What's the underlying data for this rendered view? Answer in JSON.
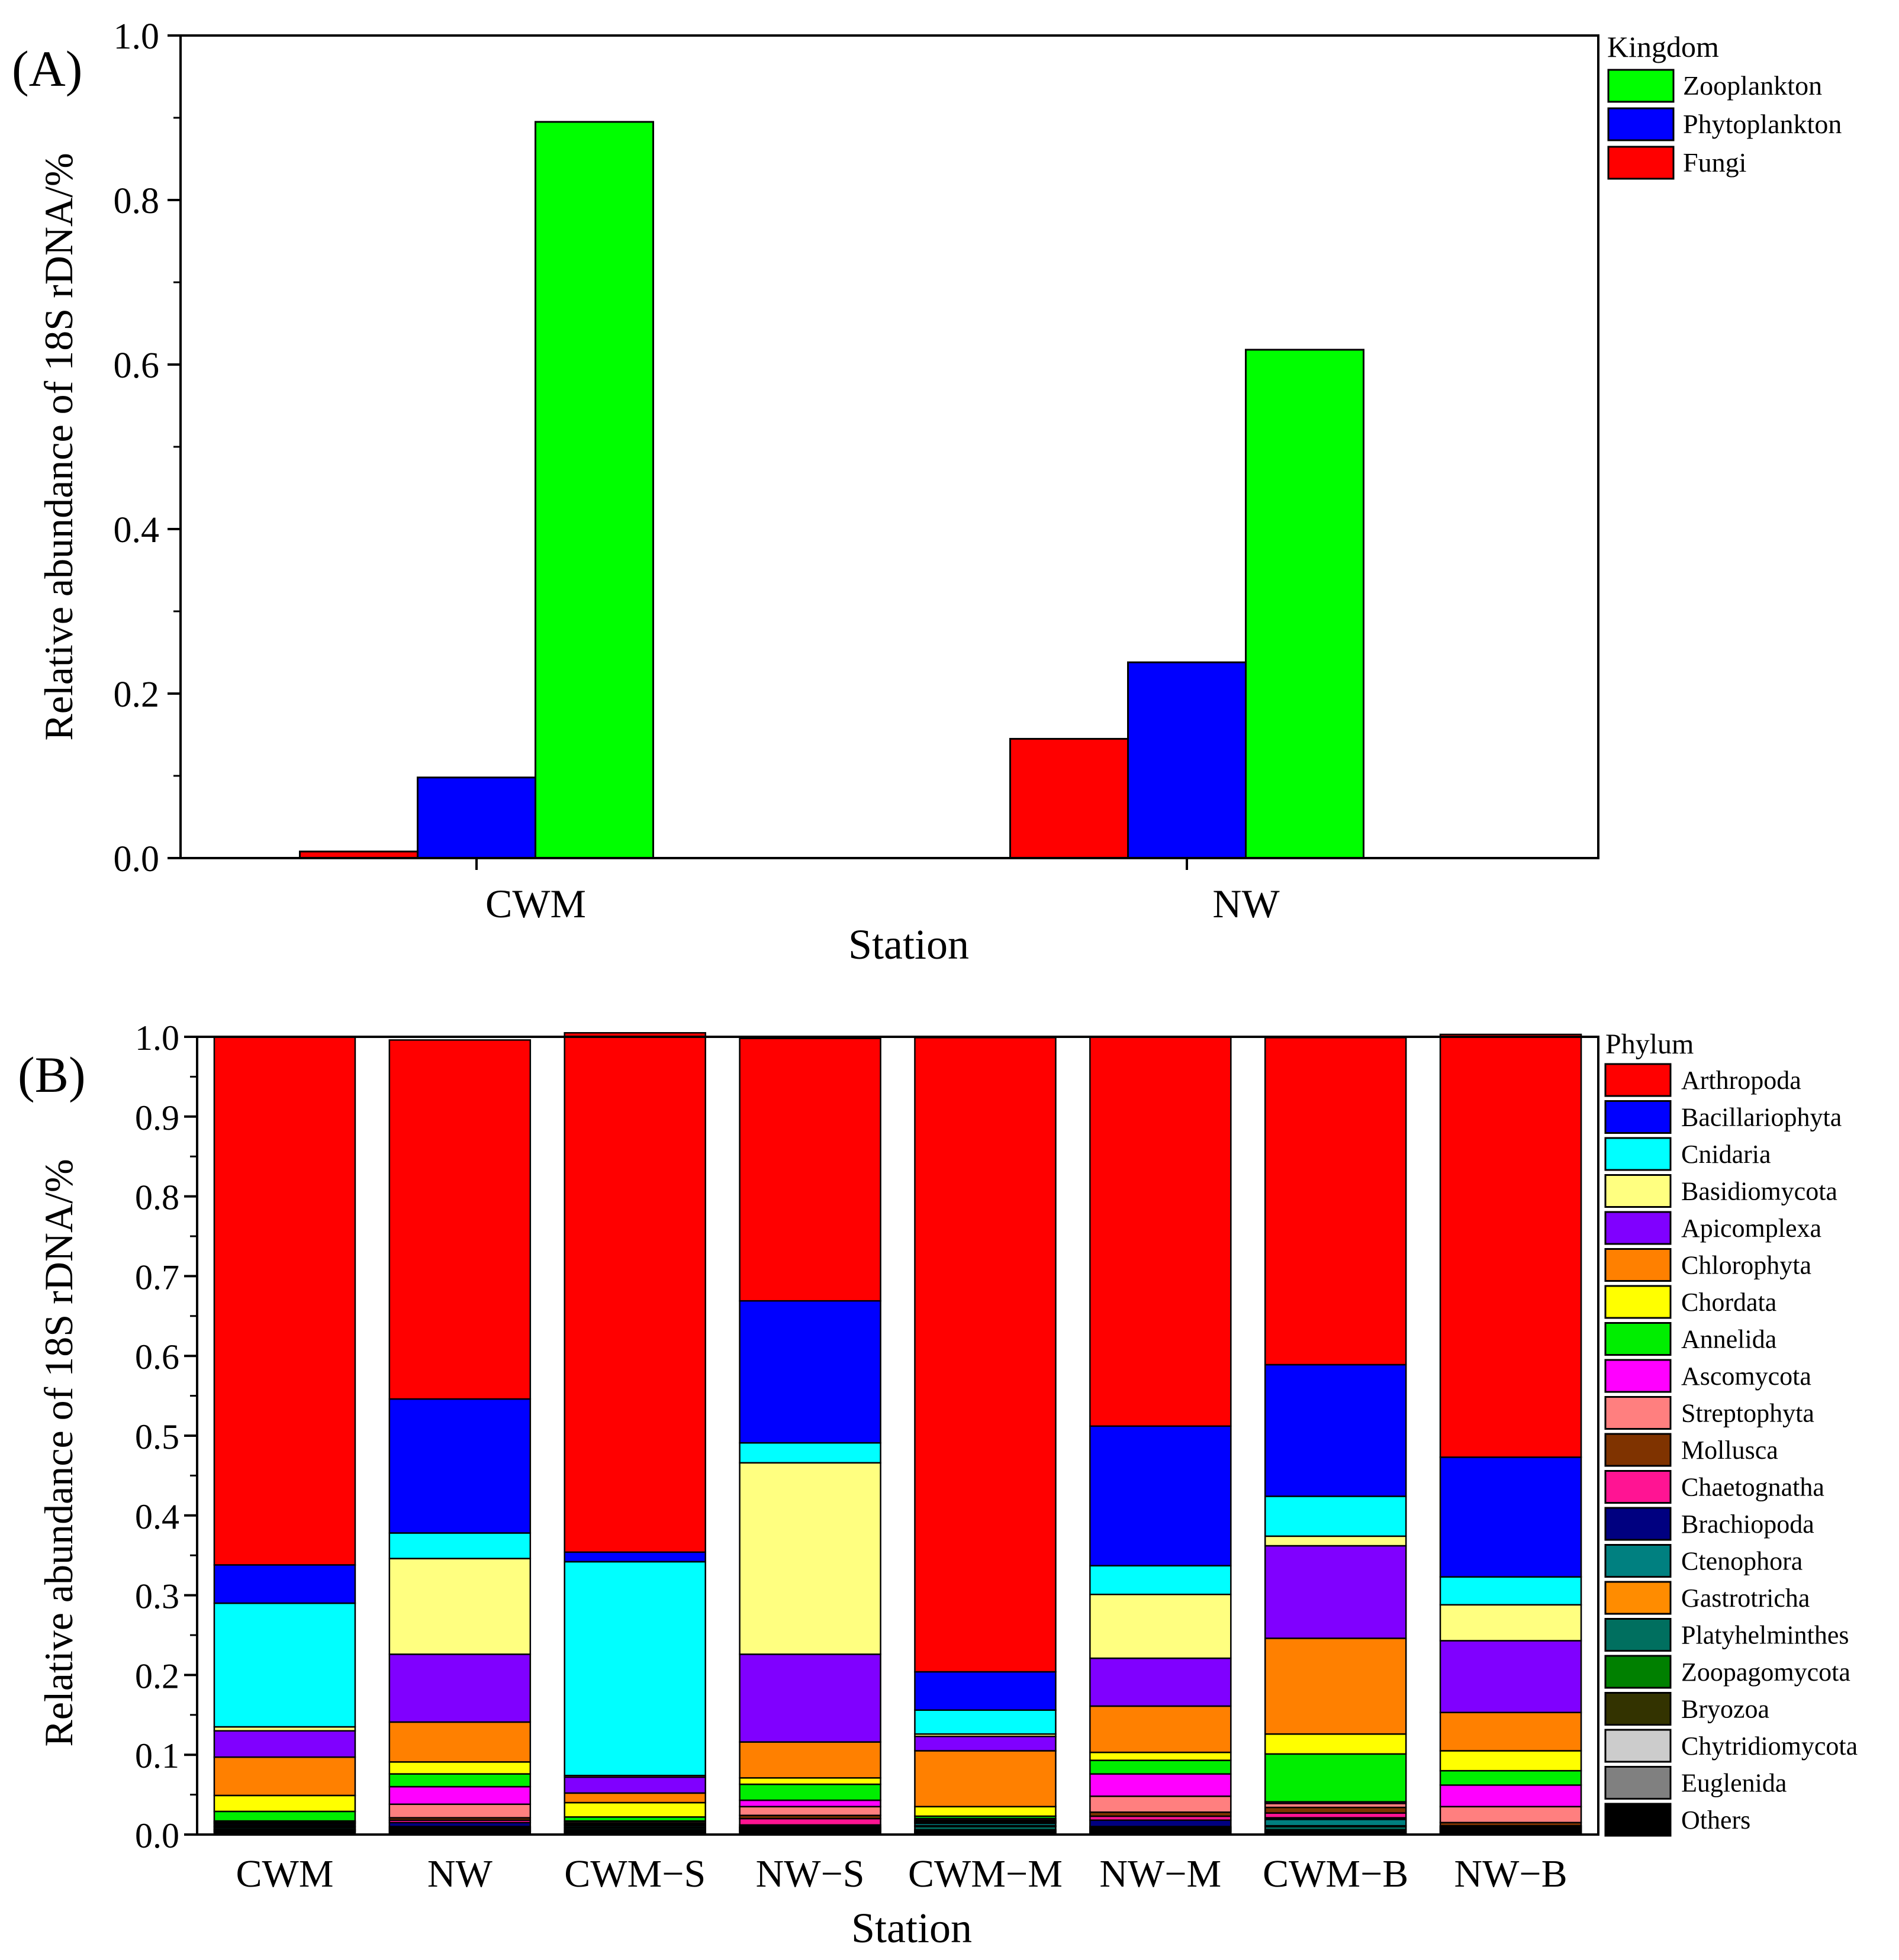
{
  "chart_data": [
    {
      "type": "bar",
      "panel_label": "(A)",
      "xlabel": "Station",
      "ylabel": "Relative abundance of 18S rDNA/%",
      "ylim": [
        0,
        1.0
      ],
      "yticks": [
        "0.0",
        "0.2",
        "0.4",
        "0.6",
        "0.8",
        "1.0"
      ],
      "categories": [
        "CWM",
        "NW"
      ],
      "legend_title": "Kingdom",
      "legend_placement": "right",
      "series": [
        {
          "name": "Fungi",
          "color": "#ff0000",
          "values": [
            0.008,
            0.145
          ]
        },
        {
          "name": "Phytoplankton",
          "color": "#0000ff",
          "values": [
            0.098,
            0.238
          ]
        },
        {
          "name": "Zooplankton",
          "color": "#00ff00",
          "values": [
            0.895,
            0.618
          ]
        }
      ],
      "legend_order": [
        "Zooplankton",
        "Phytoplankton",
        "Fungi"
      ]
    },
    {
      "type": "bar",
      "stacked": true,
      "panel_label": "(B)",
      "xlabel": "Station",
      "ylabel": "Relative abundance of 18S rDNA/%",
      "ylim": [
        0,
        1.0
      ],
      "yticks": [
        "0.0",
        "0.1",
        "0.2",
        "0.3",
        "0.4",
        "0.5",
        "0.6",
        "0.7",
        "0.8",
        "0.9",
        "1.0"
      ],
      "categories": [
        "CWM",
        "NW",
        "CWM−S",
        "NW−S",
        "CWM−M",
        "NW−M",
        "CWM−B",
        "NW−B"
      ],
      "legend_title": "Phylum",
      "legend_placement": "right",
      "series": [
        {
          "name": "Others",
          "color": "#000000",
          "values": [
            0.003,
            0.003,
            0.002,
            0.003,
            0.002,
            0.003,
            0.002,
            0.002
          ]
        },
        {
          "name": "Euglenida",
          "color": "#808080",
          "values": [
            0.001,
            0.001,
            0.001,
            0.001,
            0.001,
            0.001,
            0.001,
            0.001
          ]
        },
        {
          "name": "Chytridiomycota",
          "color": "#cccccc",
          "values": [
            0.001,
            0.001,
            0.001,
            0.001,
            0.001,
            0.001,
            0.001,
            0.001
          ]
        },
        {
          "name": "Bryozoa",
          "color": "#333300",
          "values": [
            0.001,
            0.001,
            0.001,
            0.001,
            0.001,
            0.001,
            0.001,
            0.001
          ]
        },
        {
          "name": "Zoopagomycota",
          "color": "#008000",
          "values": [
            0.001,
            0.001,
            0.001,
            0.001,
            0.001,
            0.001,
            0.001,
            0.001
          ]
        },
        {
          "name": "Platyhelminthes",
          "color": "#006f5f",
          "values": [
            0.002,
            0.001,
            0.002,
            0.001,
            0.004,
            0.001,
            0.004,
            0.001
          ]
        },
        {
          "name": "Gastrotricha",
          "color": "#ff8c00",
          "values": [
            0.001,
            0.001,
            0.001,
            0.001,
            0.001,
            0.001,
            0.001,
            0.001
          ]
        },
        {
          "name": "Ctenophora",
          "color": "#008080",
          "values": [
            0.001,
            0.001,
            0.002,
            0.001,
            0.003,
            0.001,
            0.008,
            0.001
          ]
        },
        {
          "name": "Brachiopoda",
          "color": "#000080",
          "values": [
            0.002,
            0.005,
            0.001,
            0.002,
            0.001,
            0.008,
            0.002,
            0.001
          ]
        },
        {
          "name": "Chaetognatha",
          "color": "#ff1493",
          "values": [
            0.001,
            0.003,
            0.001,
            0.008,
            0.001,
            0.005,
            0.006,
            0.001
          ]
        },
        {
          "name": "Mollusca",
          "color": "#7f3300",
          "values": [
            0.001,
            0.003,
            0.001,
            0.004,
            0.001,
            0.005,
            0.007,
            0.004
          ]
        },
        {
          "name": "Streptophyta",
          "color": "#ff7f7f",
          "values": [
            0.001,
            0.017,
            0.002,
            0.011,
            0.001,
            0.02,
            0.005,
            0.02
          ]
        },
        {
          "name": "Ascomycota",
          "color": "#ff00ff",
          "values": [
            0.001,
            0.022,
            0.001,
            0.008,
            0.002,
            0.028,
            0.002,
            0.027
          ]
        },
        {
          "name": "Annelida",
          "color": "#00ee00",
          "values": [
            0.012,
            0.016,
            0.005,
            0.02,
            0.003,
            0.017,
            0.06,
            0.018
          ]
        },
        {
          "name": "Chordata",
          "color": "#ffff00",
          "values": [
            0.02,
            0.015,
            0.018,
            0.008,
            0.012,
            0.01,
            0.025,
            0.025
          ]
        },
        {
          "name": "Chlorophyta",
          "color": "#ff8000",
          "values": [
            0.048,
            0.05,
            0.012,
            0.045,
            0.07,
            0.058,
            0.12,
            0.048
          ]
        },
        {
          "name": "Apicomplexa",
          "color": "#8000ff",
          "values": [
            0.033,
            0.085,
            0.02,
            0.11,
            0.018,
            0.06,
            0.116,
            0.09
          ]
        },
        {
          "name": "Basidiomycota",
          "color": "#ffff80",
          "values": [
            0.005,
            0.12,
            0.002,
            0.24,
            0.003,
            0.08,
            0.012,
            0.045
          ]
        },
        {
          "name": "Cnidaria",
          "color": "#00ffff",
          "values": [
            0.155,
            0.032,
            0.268,
            0.025,
            0.03,
            0.036,
            0.05,
            0.035
          ]
        },
        {
          "name": "Bacillariophyta",
          "color": "#0000ff",
          "values": [
            0.048,
            0.168,
            0.012,
            0.178,
            0.048,
            0.175,
            0.165,
            0.15
          ]
        },
        {
          "name": "Arthropoda",
          "color": "#ff0000",
          "values": [
            0.662,
            0.45,
            0.651,
            0.329,
            0.795,
            0.488,
            0.41,
            0.53
          ]
        }
      ],
      "legend_order": [
        "Arthropoda",
        "Bacillariophyta",
        "Cnidaria",
        "Basidiomycota",
        "Apicomplexa",
        "Chlorophyta",
        "Chordata",
        "Annelida",
        "Ascomycota",
        "Streptophyta",
        "Mollusca",
        "Chaetognatha",
        "Brachiopoda",
        "Ctenophora",
        "Gastrotricha",
        "Platyhelminthes",
        "Zoopagomycota",
        "Bryozoa",
        "Chytridiomycota",
        "Euglenida",
        "Others"
      ]
    }
  ]
}
